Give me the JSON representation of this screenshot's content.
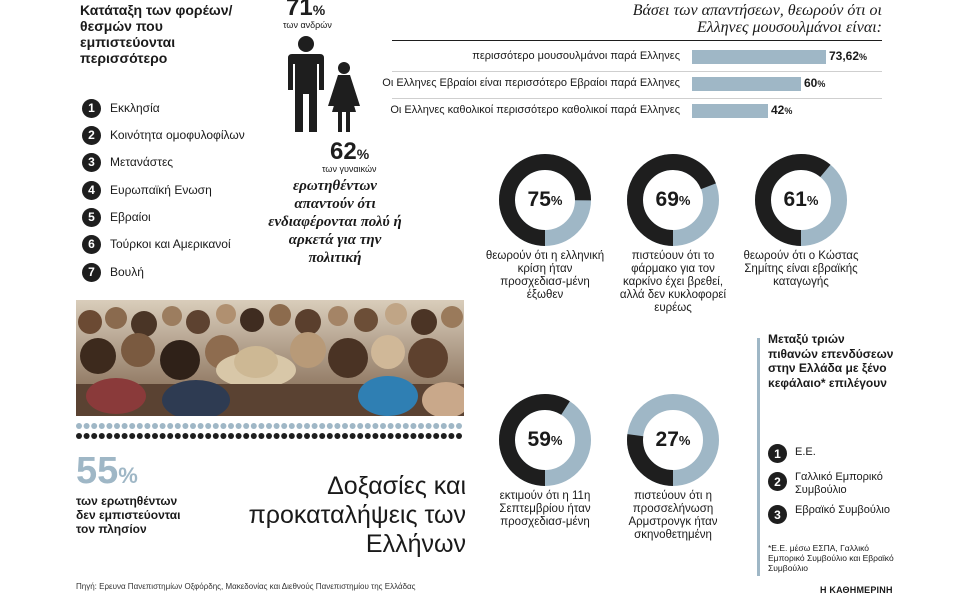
{
  "ranking": {
    "title": "Κατάταξη των φορέων/ θεσμών που εμπιστεύονται περισσότερο",
    "items": [
      {
        "num": "1",
        "label": "Εκκλησία"
      },
      {
        "num": "2",
        "label": "Κοινότητα ομοφυλοφίλων"
      },
      {
        "num": "3",
        "label": "Μετανάστες"
      },
      {
        "num": "4",
        "label": "Ευρωπαϊκή Ενωση"
      },
      {
        "num": "5",
        "label": "Εβραίοι"
      },
      {
        "num": "6",
        "label": "Τούρκοι και Αμερικανοί"
      },
      {
        "num": "7",
        "label": "Βουλή"
      }
    ]
  },
  "gender": {
    "men_value": "71",
    "men_unit": "%",
    "men_label": "των ανδρών",
    "women_value": "62",
    "women_unit": "%",
    "women_label": "των γυναικών",
    "caption": "ερωτηθέντων απαντούν ότι ενδιαφέρονται πολύ ή αρκετά για την πολιτική",
    "men_icon": "man-icon",
    "women_icon": "woman-icon"
  },
  "chart_data": [
    {
      "type": "bar",
      "title": "Βάσει των απαντήσεων, θεωρούν ότι οι Ελληνες μουσουλμάνοι είναι:",
      "categories": [
        "περισσότερο μουσουλμάνοι παρά Ελληνες",
        "Οι Ελληνες Εβραίοι είναι περισσότερο Εβραίοι παρά Ελληνες",
        "Οι Ελληνες καθολικοί περισσότερο καθολικοί παρά Ελληνες"
      ],
      "values": [
        73.62,
        60,
        42
      ],
      "value_labels": [
        "73,62",
        "60",
        "42"
      ],
      "unit": "%",
      "orientation": "horizontal",
      "color": "#9fb7c6"
    },
    {
      "type": "pie",
      "variant": "donut",
      "value": 75,
      "label": "75",
      "unit": "%",
      "caption": "θεωρούν ότι η ελληνική κρίση ήταν προσχεδιασ-μένη έξωθεν",
      "colors": {
        "filled": "#1e1e1e",
        "rest": "#9fb7c6"
      }
    },
    {
      "type": "pie",
      "variant": "donut",
      "value": 69,
      "label": "69",
      "unit": "%",
      "caption": "πιστεύουν ότι το φάρμακο για τον καρκίνο έχει βρεθεί, αλλά δεν κυκλοφορεί ευρέως",
      "colors": {
        "filled": "#1e1e1e",
        "rest": "#9fb7c6"
      }
    },
    {
      "type": "pie",
      "variant": "donut",
      "value": 61,
      "label": "61",
      "unit": "%",
      "caption": "θεωρούν ότι ο Κώστας Σημίτης είναι εβραϊκής καταγωγής",
      "colors": {
        "filled": "#1e1e1e",
        "rest": "#9fb7c6"
      }
    },
    {
      "type": "pie",
      "variant": "donut",
      "value": 59,
      "label": "59",
      "unit": "%",
      "caption": "εκτιμούν ότι η 11η Σεπτεμβρίου ήταν προσχεδιασ-μένη",
      "colors": {
        "filled": "#1e1e1e",
        "rest": "#9fb7c6"
      }
    },
    {
      "type": "pie",
      "variant": "donut",
      "value": 27,
      "label": "27",
      "unit": "%",
      "caption": "πιστεύουν ότι η προσσελήνωση Αρμστρονγκ ήταν σκηνοθετημένη",
      "colors": {
        "filled": "#1e1e1e",
        "rest": "#9fb7c6"
      }
    }
  ],
  "trust": {
    "value": "55",
    "unit": "%",
    "caption": "των ερωτηθέντων δεν εμπιστεύονται τον πλησίον"
  },
  "headline": "Δοξασίες και προκαταλήψεις των Ελλήνων",
  "investments": {
    "title": "Μεταξύ τριών πιθανών επενδύσεων στην Ελλάδα με ξένο κεφάλαιο* επιλέγουν",
    "items": [
      {
        "num": "1",
        "label": "Ε.Ε."
      },
      {
        "num": "2",
        "label": "Γαλλικό Εμπορικό Συμβούλιο"
      },
      {
        "num": "3",
        "label": "Εβραϊκό Συμβούλιο"
      }
    ],
    "footnote": "*Ε.Ε. μέσω ΕΣΠΑ, Γαλλικό Εμπορικό Συμβούλιο και Εβραϊκό Συμβούλιο"
  },
  "source": "Πηγή: Ερευνα Πανεπιστημίων Οξφόρδης, Μακεδονίας και Διεθνούς Πανεπιστημίου της Ελλάδας",
  "brand": "Η ΚΑΘΗΜΕΡΙΝΗ",
  "photo": {
    "icon": "crowd-photo"
  },
  "colors": {
    "accent": "#9fb7c6",
    "dark": "#1e1e1e"
  }
}
